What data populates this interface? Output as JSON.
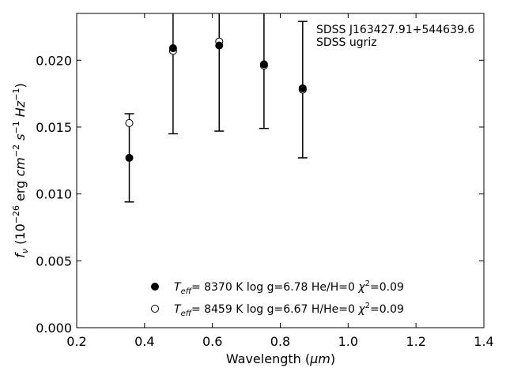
{
  "chart_data": {
    "type": "scatter",
    "xlabel": "Wavelength (μm)",
    "xlabel_parts": {
      "main": "Wavelength (",
      "unit": "μm",
      "close": ")"
    },
    "ylabel_parts": {
      "f": "f",
      "nu": "ν",
      "open": " (10",
      "exp1": "−26",
      "erg": " erg ",
      "cm": "cm",
      "exp2": "−2",
      "s": " s",
      "exp3": "−1",
      "hz": " Hz",
      "exp4": "−1",
      "close": ")"
    },
    "xlim": [
      0.2,
      1.4
    ],
    "ylim": [
      0.0,
      0.0235
    ],
    "xticks": [
      "0.2",
      "0.4",
      "0.6",
      "0.8",
      "1.0",
      "1.2",
      "1.4"
    ],
    "xtick_values": [
      0.2,
      0.4,
      0.6,
      0.8,
      1.0,
      1.2,
      1.4
    ],
    "yticks": [
      "0.000",
      "0.005",
      "0.010",
      "0.015",
      "0.020"
    ],
    "ytick_values": [
      0.0,
      0.005,
      0.01,
      0.015,
      0.02
    ],
    "annotation": [
      "SDSS J163427.91+544639.6",
      "SDSS ugriz"
    ],
    "observed": {
      "x": [
        0.355,
        0.484,
        0.62,
        0.752,
        0.866
      ],
      "y": [
        0.0127,
        0.0207,
        0.0213,
        0.0196,
        0.0178
      ],
      "err": [
        0.0033,
        0.0062,
        0.0066,
        0.0047,
        0.0051
      ]
    },
    "series": [
      {
        "marker": "filled",
        "label_teff": "T",
        "label_sub": "eff",
        "label_rest": "=  8370 K  log g=6.78  He/H=0  ",
        "label_chi": "χ",
        "label_chi_exp": "2",
        "label_chi_val": "=0.09",
        "x": [
          0.355,
          0.484,
          0.62,
          0.752,
          0.866
        ],
        "y": [
          0.0127,
          0.0209,
          0.0211,
          0.0197,
          0.0179
        ]
      },
      {
        "marker": "open",
        "label_teff": "T",
        "label_sub": "eff",
        "label_rest": "=  8459 K  log g=6.67  H/He=0  ",
        "label_chi": "χ",
        "label_chi_exp": "2",
        "label_chi_val": "=0.09",
        "x": [
          0.355,
          0.484,
          0.62,
          0.752,
          0.866
        ],
        "y": [
          0.0153,
          0.0207,
          0.0214,
          0.0196,
          0.0178
        ]
      }
    ],
    "grid": false,
    "legend_position": "bottom-center"
  }
}
